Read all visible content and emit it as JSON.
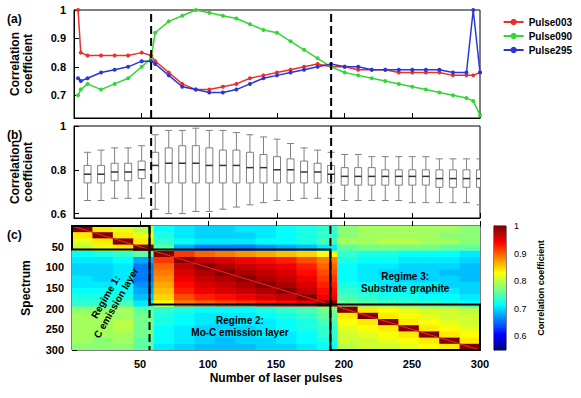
{
  "chart_data": [
    {
      "type": "line",
      "title": "(a)",
      "y_label": "Correlation coefficient",
      "x": [
        3,
        5,
        10,
        20,
        30,
        40,
        50,
        57,
        60,
        70,
        80,
        90,
        100,
        110,
        120,
        130,
        140,
        150,
        160,
        170,
        180,
        190,
        200,
        210,
        220,
        230,
        240,
        250,
        260,
        270,
        280,
        290,
        295,
        300
      ],
      "series": [
        {
          "name": "Pulse003",
          "color": "#e8302c",
          "values": [
            1,
            0.85,
            0.84,
            0.84,
            0.84,
            0.84,
            0.85,
            0.84,
            0.82,
            0.78,
            0.74,
            0.72,
            0.72,
            0.73,
            0.74,
            0.76,
            0.77,
            0.78,
            0.79,
            0.8,
            0.81,
            0.8,
            0.8,
            0.79,
            0.79,
            0.79,
            0.78,
            0.78,
            0.78,
            0.78,
            0.77,
            0.77,
            0.77,
            0.78
          ]
        },
        {
          "name": "Pulse090",
          "color": "#33d633",
          "values": [
            0.7,
            0.72,
            0.74,
            0.72,
            0.74,
            0.76,
            0.8,
            0.83,
            0.92,
            0.96,
            0.98,
            1,
            0.99,
            0.98,
            0.97,
            0.95,
            0.93,
            0.92,
            0.89,
            0.86,
            0.83,
            0.8,
            0.78,
            0.77,
            0.76,
            0.75,
            0.74,
            0.73,
            0.72,
            0.71,
            0.7,
            0.69,
            0.68,
            0.63
          ]
        },
        {
          "name": "Pulse295",
          "color": "#2a36d8",
          "values": [
            0.76,
            0.75,
            0.76,
            0.78,
            0.79,
            0.8,
            0.82,
            0.82,
            0.81,
            0.77,
            0.73,
            0.72,
            0.71,
            0.71,
            0.72,
            0.74,
            0.76,
            0.77,
            0.78,
            0.79,
            0.8,
            0.81,
            0.8,
            0.8,
            0.79,
            0.79,
            0.79,
            0.79,
            0.79,
            0.79,
            0.78,
            0.78,
            1,
            0.78
          ]
        }
      ],
      "marker": "o",
      "legend": "right",
      "grid": false,
      "tick_labels": "y",
      "xlim": [
        0,
        300
      ],
      "xticks": [
        50,
        100,
        150,
        200,
        250,
        300
      ],
      "ylim": [
        0.62,
        1
      ],
      "yticks": [
        0.7,
        0.8,
        0.9,
        1
      ]
    },
    {
      "type": "boxplot",
      "title": "(b)",
      "y_label": "Correlation coefficient",
      "color": "#808080",
      "x": [
        10,
        20,
        30,
        40,
        50,
        60,
        70,
        80,
        90,
        100,
        110,
        120,
        130,
        140,
        150,
        160,
        170,
        180,
        190,
        200,
        210,
        220,
        230,
        240,
        250,
        260,
        270,
        280,
        290,
        300
      ],
      "whisker_low": [
        0.66,
        0.66,
        0.67,
        0.67,
        0.67,
        0.62,
        0.6,
        0.6,
        0.61,
        0.61,
        0.62,
        0.63,
        0.64,
        0.65,
        0.66,
        0.66,
        0.67,
        0.67,
        0.67,
        0.66,
        0.66,
        0.66,
        0.66,
        0.66,
        0.65,
        0.65,
        0.65,
        0.65,
        0.65,
        0.64
      ],
      "q1": [
        0.74,
        0.74,
        0.75,
        0.75,
        0.76,
        0.74,
        0.74,
        0.74,
        0.74,
        0.74,
        0.74,
        0.74,
        0.74,
        0.74,
        0.74,
        0.74,
        0.74,
        0.74,
        0.74,
        0.73,
        0.73,
        0.73,
        0.73,
        0.73,
        0.73,
        0.73,
        0.72,
        0.72,
        0.72,
        0.72
      ],
      "median": [
        0.78,
        0.78,
        0.79,
        0.79,
        0.8,
        0.82,
        0.83,
        0.83,
        0.83,
        0.82,
        0.82,
        0.82,
        0.81,
        0.81,
        0.8,
        0.8,
        0.79,
        0.79,
        0.78,
        0.77,
        0.77,
        0.77,
        0.77,
        0.77,
        0.77,
        0.77,
        0.76,
        0.76,
        0.76,
        0.76
      ],
      "q3": [
        0.82,
        0.82,
        0.83,
        0.83,
        0.84,
        0.88,
        0.9,
        0.91,
        0.91,
        0.9,
        0.89,
        0.89,
        0.88,
        0.87,
        0.86,
        0.85,
        0.84,
        0.83,
        0.82,
        0.81,
        0.81,
        0.81,
        0.8,
        0.8,
        0.8,
        0.8,
        0.8,
        0.8,
        0.8,
        0.8
      ],
      "whisker_high": [
        0.88,
        0.89,
        0.9,
        0.9,
        0.91,
        0.96,
        0.98,
        0.98,
        0.99,
        0.98,
        0.98,
        0.97,
        0.96,
        0.95,
        0.94,
        0.92,
        0.9,
        0.89,
        0.88,
        0.87,
        0.87,
        0.86,
        0.86,
        0.86,
        0.86,
        0.86,
        0.85,
        0.85,
        0.85,
        0.85
      ],
      "grid": false,
      "tick_labels": "y",
      "xlim": [
        0,
        300
      ],
      "xticks": [
        50,
        100,
        150,
        200,
        250,
        300
      ],
      "ylim": [
        0.58,
        1
      ],
      "yticks": [
        0.6,
        0.8,
        1
      ]
    },
    {
      "type": "heatmap",
      "title": "(c)",
      "x_label": "Number of laser pulses",
      "y_label": "Spectrum",
      "x_edges": [
        0,
        15,
        30,
        45,
        60,
        75,
        90,
        105,
        120,
        135,
        150,
        165,
        180,
        195,
        210,
        225,
        240,
        255,
        270,
        285,
        300
      ],
      "y_edges": [
        0,
        15,
        30,
        45,
        60,
        75,
        90,
        105,
        120,
        135,
        150,
        165,
        180,
        195,
        210,
        225,
        240,
        255,
        270,
        285,
        300
      ],
      "cells": [
        [
          1,
          0.84,
          0.82,
          0.8,
          0.72,
          0.71,
          0.7,
          0.7,
          0.71,
          0.71,
          0.72,
          0.73,
          0.74,
          0.78,
          0.79,
          0.79,
          0.79,
          0.79,
          0.79,
          0.78
        ],
        [
          0.84,
          1,
          0.84,
          0.82,
          0.73,
          0.71,
          0.7,
          0.7,
          0.7,
          0.71,
          0.72,
          0.73,
          0.74,
          0.78,
          0.79,
          0.79,
          0.79,
          0.79,
          0.78,
          0.78
        ],
        [
          0.82,
          0.84,
          1,
          0.84,
          0.74,
          0.72,
          0.71,
          0.71,
          0.71,
          0.72,
          0.72,
          0.73,
          0.75,
          0.79,
          0.79,
          0.8,
          0.8,
          0.79,
          0.79,
          0.78
        ],
        [
          0.8,
          0.82,
          0.84,
          1,
          0.76,
          0.68,
          0.66,
          0.66,
          0.66,
          0.67,
          0.68,
          0.69,
          0.71,
          0.76,
          0.77,
          0.77,
          0.77,
          0.77,
          0.76,
          0.76
        ],
        [
          0.72,
          0.73,
          0.74,
          0.76,
          1,
          0.92,
          0.9,
          0.89,
          0.88,
          0.87,
          0.86,
          0.85,
          0.83,
          0.74,
          0.73,
          0.73,
          0.72,
          0.72,
          0.72,
          0.71
        ],
        [
          0.71,
          0.71,
          0.72,
          0.68,
          0.92,
          1,
          0.97,
          0.96,
          0.95,
          0.94,
          0.93,
          0.91,
          0.89,
          0.73,
          0.72,
          0.72,
          0.71,
          0.71,
          0.71,
          0.7
        ],
        [
          0.7,
          0.7,
          0.71,
          0.66,
          0.9,
          0.97,
          1,
          0.98,
          0.97,
          0.96,
          0.95,
          0.93,
          0.9,
          0.72,
          0.71,
          0.71,
          0.7,
          0.7,
          0.7,
          0.69
        ],
        [
          0.7,
          0.7,
          0.71,
          0.66,
          0.89,
          0.96,
          0.98,
          1,
          0.98,
          0.97,
          0.96,
          0.94,
          0.91,
          0.72,
          0.71,
          0.7,
          0.7,
          0.7,
          0.69,
          0.69
        ],
        [
          0.71,
          0.7,
          0.71,
          0.66,
          0.88,
          0.95,
          0.97,
          0.98,
          1,
          0.98,
          0.97,
          0.95,
          0.92,
          0.72,
          0.71,
          0.71,
          0.7,
          0.7,
          0.7,
          0.69
        ],
        [
          0.71,
          0.71,
          0.72,
          0.67,
          0.87,
          0.94,
          0.96,
          0.97,
          0.98,
          1,
          0.98,
          0.96,
          0.93,
          0.73,
          0.72,
          0.71,
          0.71,
          0.71,
          0.7,
          0.7
        ],
        [
          0.72,
          0.72,
          0.72,
          0.68,
          0.86,
          0.93,
          0.95,
          0.96,
          0.97,
          0.98,
          1,
          0.97,
          0.94,
          0.74,
          0.73,
          0.72,
          0.72,
          0.71,
          0.71,
          0.7
        ],
        [
          0.73,
          0.73,
          0.73,
          0.69,
          0.85,
          0.91,
          0.93,
          0.94,
          0.95,
          0.96,
          0.97,
          1,
          0.95,
          0.75,
          0.74,
          0.73,
          0.73,
          0.72,
          0.72,
          0.71
        ],
        [
          0.74,
          0.74,
          0.75,
          0.71,
          0.83,
          0.89,
          0.9,
          0.91,
          0.92,
          0.93,
          0.94,
          0.95,
          1,
          0.77,
          0.76,
          0.75,
          0.74,
          0.74,
          0.73,
          0.72
        ],
        [
          0.78,
          0.78,
          0.79,
          0.76,
          0.74,
          0.73,
          0.72,
          0.72,
          0.72,
          0.73,
          0.74,
          0.75,
          0.77,
          1,
          0.84,
          0.83,
          0.82,
          0.81,
          0.81,
          0.8
        ],
        [
          0.79,
          0.79,
          0.79,
          0.77,
          0.73,
          0.72,
          0.71,
          0.71,
          0.71,
          0.72,
          0.73,
          0.74,
          0.76,
          0.84,
          1,
          0.84,
          0.83,
          0.82,
          0.81,
          0.81
        ],
        [
          0.79,
          0.79,
          0.8,
          0.77,
          0.73,
          0.72,
          0.71,
          0.7,
          0.71,
          0.71,
          0.72,
          0.73,
          0.75,
          0.83,
          0.84,
          1,
          0.84,
          0.83,
          0.82,
          0.81
        ],
        [
          0.79,
          0.79,
          0.8,
          0.77,
          0.72,
          0.71,
          0.7,
          0.7,
          0.7,
          0.71,
          0.72,
          0.73,
          0.74,
          0.82,
          0.83,
          0.84,
          1,
          0.84,
          0.83,
          0.82
        ],
        [
          0.79,
          0.79,
          0.79,
          0.77,
          0.72,
          0.71,
          0.7,
          0.7,
          0.7,
          0.71,
          0.71,
          0.72,
          0.74,
          0.81,
          0.82,
          0.83,
          0.84,
          1,
          0.84,
          0.83
        ],
        [
          0.79,
          0.78,
          0.79,
          0.76,
          0.72,
          0.71,
          0.7,
          0.69,
          0.7,
          0.7,
          0.71,
          0.72,
          0.73,
          0.81,
          0.81,
          0.82,
          0.83,
          0.84,
          1,
          0.84
        ],
        [
          0.78,
          0.78,
          0.78,
          0.76,
          0.71,
          0.7,
          0.69,
          0.69,
          0.69,
          0.7,
          0.7,
          0.71,
          0.72,
          0.8,
          0.81,
          0.81,
          0.82,
          0.83,
          0.84,
          1
        ]
      ],
      "colorbar_label": "Correlation coefficient",
      "clim": [
        0.55,
        1
      ],
      "cticks": [
        0.6,
        0.7,
        0.8,
        0.9,
        1
      ],
      "regimes": [
        {
          "label": "Regime 1: C emission layer",
          "start": 0,
          "end": 57
        },
        {
          "label": "Regime 2: Mo-C emission layer",
          "start": 57,
          "end": 190
        },
        {
          "label": "Regime 3: Substrate graphite",
          "start": 190,
          "end": 300
        }
      ],
      "grid": false,
      "xlim": [
        0,
        300
      ],
      "xticks": [
        50,
        100,
        150,
        200,
        250,
        300
      ],
      "ylim": [
        0,
        300
      ],
      "yticks": [
        50,
        100,
        150,
        200,
        250,
        300
      ]
    }
  ]
}
